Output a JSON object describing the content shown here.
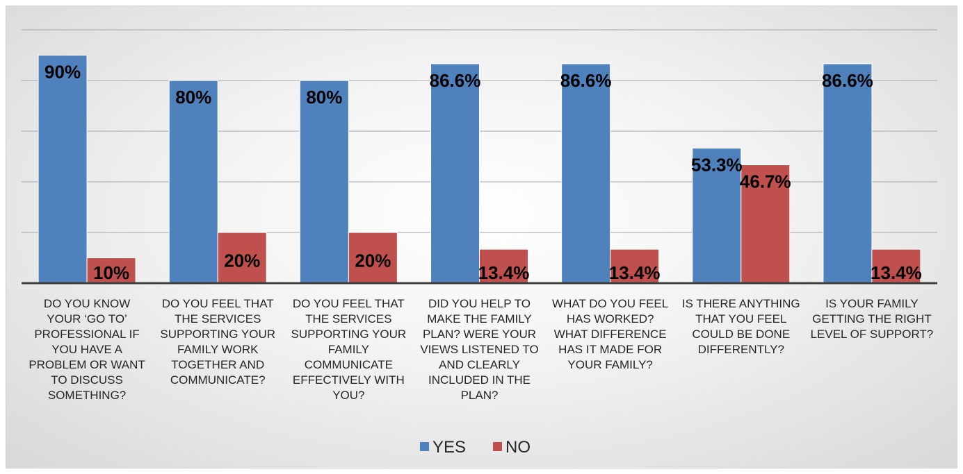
{
  "chart_data": {
    "type": "bar",
    "categories": [
      "DO YOU KNOW YOUR ‘GO TO’ PROFESSIONAL IF YOU HAVE A PROBLEM OR WANT TO DISCUSS SOMETHING?",
      "DO YOU FEEL THAT THE SERVICES SUPPORTING YOUR FAMILY WORK TOGETHER AND COMMUNICATE?",
      "DO YOU FEEL THAT THE SERVICES SUPPORTING YOUR FAMILY COMMUNICATE EFFECTIVELY WITH YOU?",
      "DID YOU HELP TO MAKE THE FAMILY PLAN? WERE YOUR VIEWS LISTENED TO AND CLEARLY INCLUDED IN THE PLAN?",
      "WHAT DO YOU FEEL HAS WORKED? WHAT DIFFERENCE HAS IT MADE FOR YOUR FAMILY?",
      "IS THERE ANYTHING THAT YOU FEEL COULD BE DONE DIFFERENTLY?",
      "IS YOUR FAMILY GETTING THE RIGHT LEVEL OF SUPPORT?"
    ],
    "category_lines": [
      [
        "DO YOU KNOW",
        "YOUR ‘GO TO’",
        "PROFESSIONAL IF",
        "YOU HAVE A",
        "PROBLEM OR WANT",
        "TO DISCUSS",
        "SOMETHING?"
      ],
      [
        "DO YOU FEEL THAT",
        "THE SERVICES",
        "SUPPORTING YOUR",
        "FAMILY WORK",
        "TOGETHER AND",
        "COMMUNICATE?"
      ],
      [
        "DO YOU FEEL THAT",
        "THE SERVICES",
        "SUPPORTING YOUR",
        "FAMILY",
        "COMMUNICATE",
        "EFFECTIVELY WITH",
        "YOU?"
      ],
      [
        "DID YOU HELP TO",
        "MAKE THE FAMILY",
        "PLAN? WERE YOUR",
        "VIEWS LISTENED TO",
        "AND CLEARLY",
        "INCLUDED IN THE",
        "PLAN?"
      ],
      [
        "WHAT DO YOU FEEL",
        "HAS WORKED?",
        "WHAT DIFFERENCE",
        "HAS IT MADE FOR",
        "YOUR FAMILY?"
      ],
      [
        "IS THERE ANYTHING",
        "THAT YOU FEEL",
        "COULD BE DONE",
        "DIFFERENTLY?"
      ],
      [
        "IS YOUR FAMILY",
        "GETTING THE RIGHT",
        "LEVEL OF SUPPORT?"
      ]
    ],
    "series": [
      {
        "name": "YES",
        "color": "#4f81bd",
        "values": [
          90,
          80,
          80,
          86.6,
          86.6,
          53.3,
          86.6
        ],
        "labels": [
          "90%",
          "80%",
          "80%",
          "86.6%",
          "86.6%",
          "53.3%",
          "86.6%"
        ]
      },
      {
        "name": "NO",
        "color": "#c0504d",
        "values": [
          10,
          20,
          20,
          13.4,
          13.4,
          46.7,
          13.4
        ],
        "labels": [
          "10%",
          "20%",
          "20%",
          "13.4%",
          "13.4%",
          "46.7%",
          "13.4%"
        ]
      }
    ],
    "ylim": [
      0,
      100
    ],
    "grid": true,
    "legend_position": "bottom"
  }
}
